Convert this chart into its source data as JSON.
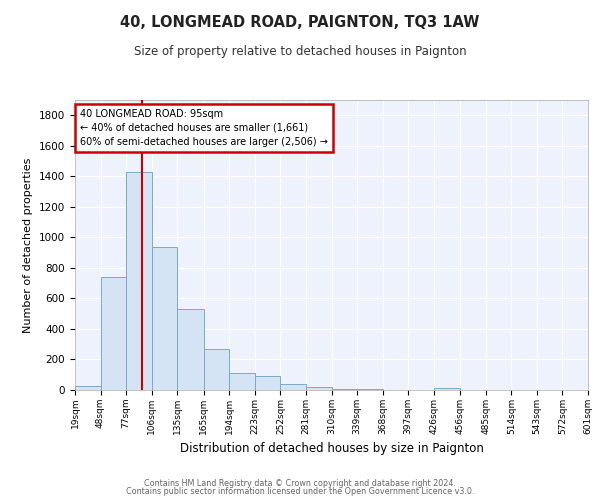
{
  "title": "40, LONGMEAD ROAD, PAIGNTON, TQ3 1AW",
  "subtitle": "Size of property relative to detached houses in Paignton",
  "xlabel": "Distribution of detached houses by size in Paignton",
  "ylabel": "Number of detached properties",
  "footer_line1": "Contains HM Land Registry data © Crown copyright and database right 2024.",
  "footer_line2": "Contains public sector information licensed under the Open Government Licence v3.0.",
  "bin_edges": [
    19,
    48,
    77,
    106,
    135,
    165,
    194,
    223,
    252,
    281,
    310,
    339,
    368,
    397,
    426,
    456,
    485,
    514,
    543,
    572,
    601
  ],
  "bin_heights": [
    25,
    740,
    1430,
    935,
    530,
    268,
    110,
    95,
    42,
    18,
    8,
    5,
    3,
    2,
    15,
    2,
    2,
    2,
    2,
    2
  ],
  "bar_color": "#d4e4f4",
  "bar_edge_color": "#7aaac8",
  "property_size": 95,
  "vline_color": "#cc0000",
  "annotation_line1": "40 LONGMEAD ROAD: 95sqm",
  "annotation_line2": "← 40% of detached houses are smaller (1,661)",
  "annotation_line3": "60% of semi-detached houses are larger (2,506) →",
  "annotation_box_color": "#cc0000",
  "ylim": [
    0,
    1900
  ],
  "yticks": [
    0,
    200,
    400,
    600,
    800,
    1000,
    1200,
    1400,
    1600,
    1800
  ],
  "bg_color": "#eef2fc",
  "grid_color": "#ffffff",
  "tick_labels": [
    "19sqm",
    "48sqm",
    "77sqm",
    "106sqm",
    "135sqm",
    "165sqm",
    "194sqm",
    "223sqm",
    "252sqm",
    "281sqm",
    "310sqm",
    "339sqm",
    "368sqm",
    "397sqm",
    "426sqm",
    "456sqm",
    "485sqm",
    "514sqm",
    "543sqm",
    "572sqm",
    "601sqm"
  ]
}
